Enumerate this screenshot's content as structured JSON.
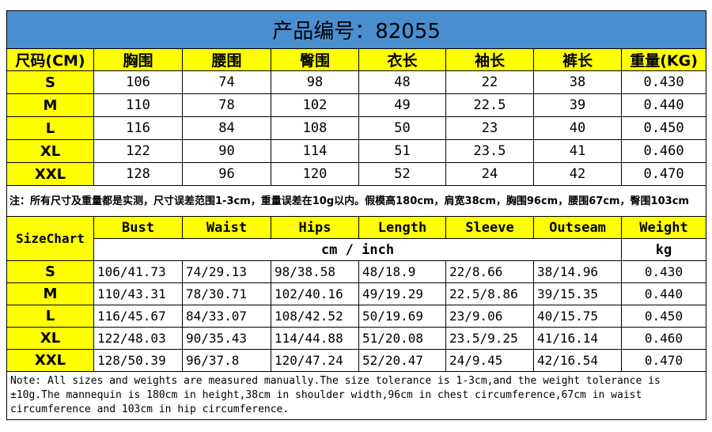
{
  "title": "产品编号：82055",
  "cn_table": {
    "headers": [
      "尺码(CM)",
      "胸围",
      "腰围",
      "臀围",
      "衣长",
      "袖长",
      "裤长",
      "重量(KG)"
    ],
    "rows": [
      [
        "S",
        "106",
        "74",
        "98",
        "48",
        "22",
        "38",
        "0.430"
      ],
      [
        "M",
        "110",
        "78",
        "102",
        "49",
        "22.5",
        "39",
        "0.440"
      ],
      [
        "L",
        "116",
        "84",
        "108",
        "50",
        "23",
        "40",
        "0.450"
      ],
      [
        "XL",
        "122",
        "90",
        "114",
        "51",
        "23.5",
        "41",
        "0.460"
      ],
      [
        "XXL",
        "128",
        "96",
        "120",
        "52",
        "24",
        "42",
        "0.470"
      ]
    ],
    "note": "注：所有尺寸及重量都是实测，尺寸误差范围1-3cm，重量误差在10g以内。假模高180cm，肩宽38cm，胸围96cm，腰围67cm，臀围103cm"
  },
  "en_table": {
    "label": "SizeChart",
    "headers": [
      "Bust",
      "Waist",
      "Hips",
      "Length",
      "Sleeve",
      "Outseam",
      "Weight"
    ],
    "unit": "cm / inch",
    "unit_weight": "kg",
    "rows": [
      [
        "S",
        "106/41.73",
        "74/29.13",
        "98/38.58",
        "48/18.9",
        "22/8.66",
        "38/14.96",
        "0.430"
      ],
      [
        "M",
        "110/43.31",
        "78/30.71",
        "102/40.16",
        "49/19.29",
        "22.5/8.86",
        "39/15.35",
        "0.440"
      ],
      [
        "L",
        "116/45.67",
        "84/33.07",
        "108/42.52",
        "50/19.69",
        "23/9.06",
        "40/15.75",
        "0.450"
      ],
      [
        "XL",
        "122/48.03",
        "90/35.43",
        "114/44.88",
        "51/20.08",
        "23.5/9.25",
        "41/16.14",
        "0.460"
      ],
      [
        "XXL",
        "128/50.39",
        "96/37.8",
        "120/47.24",
        "52/20.47",
        "24/9.45",
        "42/16.54",
        "0.470"
      ]
    ],
    "note": "Note: All sizes and weights are measured manually.The size tolerance is 1-3cm,and the weight tolerance is ±10g.The mannequin is 180cm in height,38cm in shoulder width,96cm in chest circumference,67cm in waist circumference and 103cm in hip circumference."
  },
  "colors": {
    "title_bg": "#4a8fd0",
    "highlight": "#ffff00"
  }
}
